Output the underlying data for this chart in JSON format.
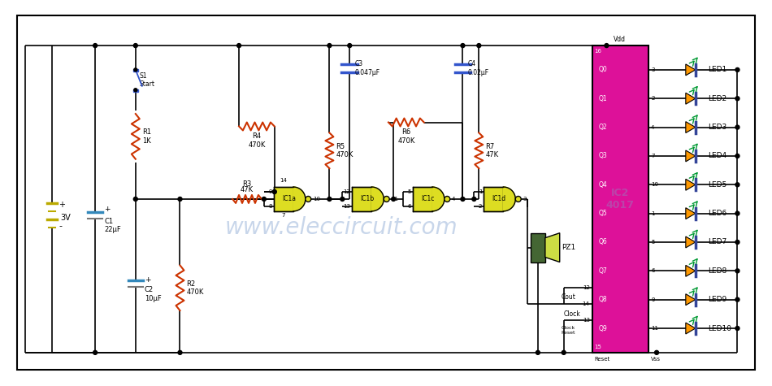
{
  "bg_color": "#ffffff",
  "wire_color": "#000000",
  "resistor_color": "#cc3300",
  "cap_color": "#3355cc",
  "elec_cap_color": "#3388bb",
  "battery_color": "#bbaa00",
  "gate_color": "#dddd22",
  "ic_block_color": "#dd1199",
  "ic_block_text_color": "#bb44aa",
  "led_body_color": "#ff9900",
  "led_bar_color": "#334499",
  "switch_color": "#3355cc",
  "pz_rect_color": "#446633",
  "pz_cone_color": "#ccdd44",
  "green_arrow": "#009933",
  "watermark": "www.eleccircuit.com",
  "watermark_color": "#7799cc",
  "leds": [
    "LED1",
    "LED2",
    "LED3",
    "LED4",
    "LED5",
    "LED6",
    "LED7",
    "LED8",
    "LED9",
    "LED10"
  ],
  "q_labels": [
    "Q0",
    "Q1",
    "Q2",
    "Q3",
    "Q4",
    "Q5",
    "Q6",
    "Q7",
    "Q8",
    "Q9"
  ],
  "q_pins": [
    3,
    2,
    4,
    7,
    10,
    1,
    5,
    6,
    9,
    11
  ],
  "ic2_label": "IC2\n4017"
}
